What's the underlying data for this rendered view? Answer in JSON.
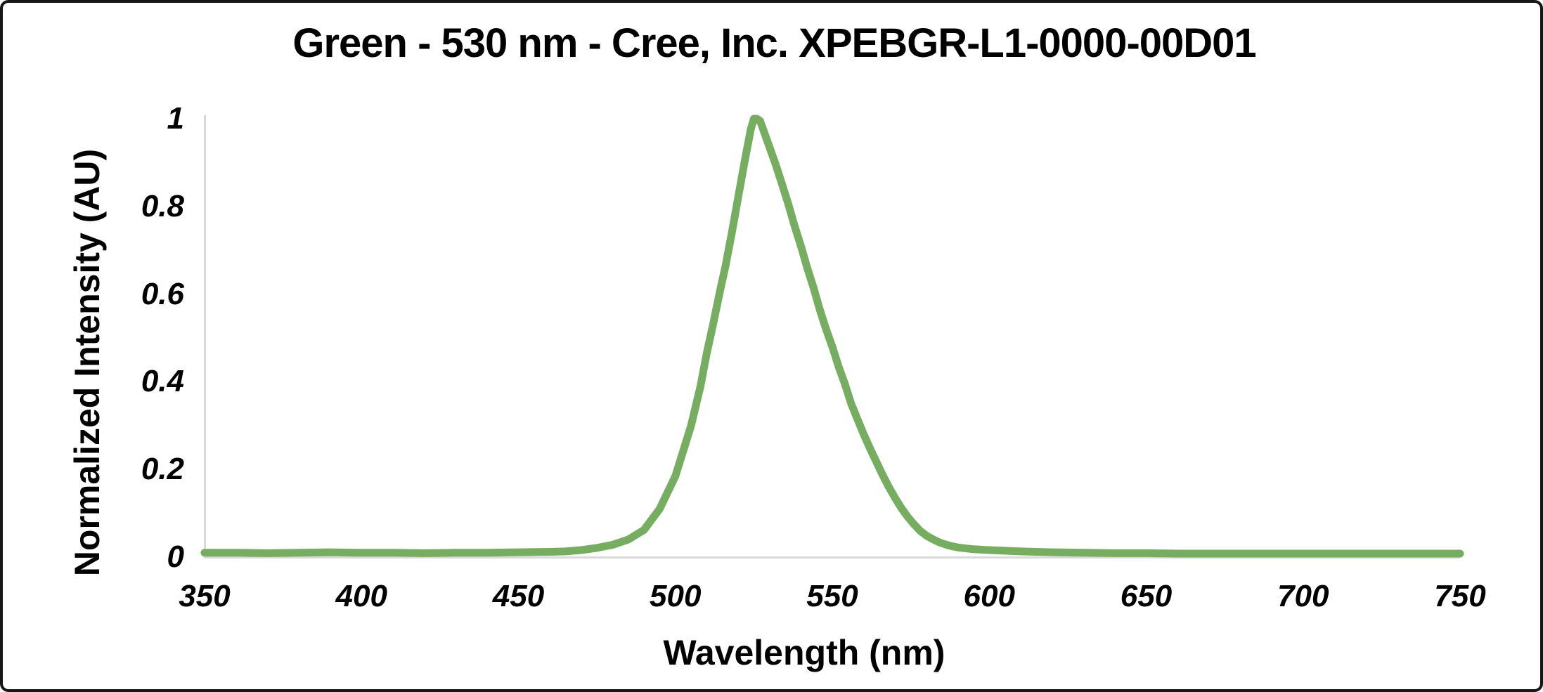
{
  "chart_data": {
    "type": "line",
    "title": "Green - 530 nm - Cree, Inc. XPEBGR-L1-0000-00D01",
    "xlabel": "Wavelength (nm)",
    "ylabel": "Normalized Intensity (AU)",
    "xlim": [
      350,
      750
    ],
    "ylim": [
      0,
      1
    ],
    "xticks": [
      350,
      400,
      450,
      500,
      550,
      600,
      650,
      700,
      750
    ],
    "yticks": [
      {
        "value": 0,
        "label": "0"
      },
      {
        "value": 0.2,
        "label": "0.2"
      },
      {
        "value": 0.4,
        "label": "0.4"
      },
      {
        "value": 0.6,
        "label": "0.6"
      },
      {
        "value": 0.8,
        "label": "0.8"
      },
      {
        "value": 1,
        "label": "1"
      }
    ],
    "grid": false,
    "legend": "none",
    "colors": {
      "line": "#76ad60",
      "axis_line": "#d9d9d9",
      "text": "#000000",
      "background": "#ffffff",
      "frame_border": "#161616"
    },
    "series": [
      {
        "name": "normalized-intensity-spectrum",
        "color": "#76ad60",
        "points": [
          [
            350,
            0.01
          ],
          [
            360,
            0.01
          ],
          [
            370,
            0.009
          ],
          [
            380,
            0.01
          ],
          [
            390,
            0.011
          ],
          [
            400,
            0.01
          ],
          [
            410,
            0.01
          ],
          [
            420,
            0.009
          ],
          [
            430,
            0.01
          ],
          [
            440,
            0.01
          ],
          [
            450,
            0.011
          ],
          [
            460,
            0.012
          ],
          [
            465,
            0.013
          ],
          [
            470,
            0.016
          ],
          [
            475,
            0.021
          ],
          [
            480,
            0.028
          ],
          [
            485,
            0.04
          ],
          [
            490,
            0.062
          ],
          [
            495,
            0.11
          ],
          [
            500,
            0.185
          ],
          [
            505,
            0.3
          ],
          [
            508,
            0.39
          ],
          [
            510,
            0.465
          ],
          [
            512,
            0.53
          ],
          [
            514,
            0.6
          ],
          [
            516,
            0.665
          ],
          [
            518,
            0.74
          ],
          [
            520,
            0.82
          ],
          [
            522,
            0.9
          ],
          [
            524,
            0.975
          ],
          [
            525,
            1.0
          ],
          [
            526,
            1.0
          ],
          [
            527,
            0.995
          ],
          [
            528,
            0.975
          ],
          [
            530,
            0.935
          ],
          [
            532,
            0.895
          ],
          [
            534,
            0.85
          ],
          [
            536,
            0.805
          ],
          [
            538,
            0.755
          ],
          [
            540,
            0.71
          ],
          [
            542,
            0.66
          ],
          [
            544,
            0.615
          ],
          [
            546,
            0.565
          ],
          [
            548,
            0.52
          ],
          [
            550,
            0.48
          ],
          [
            552,
            0.435
          ],
          [
            554,
            0.395
          ],
          [
            556,
            0.35
          ],
          [
            558,
            0.315
          ],
          [
            560,
            0.28
          ],
          [
            562,
            0.248
          ],
          [
            564,
            0.218
          ],
          [
            566,
            0.188
          ],
          [
            568,
            0.16
          ],
          [
            570,
            0.135
          ],
          [
            572,
            0.112
          ],
          [
            574,
            0.092
          ],
          [
            576,
            0.075
          ],
          [
            578,
            0.06
          ],
          [
            580,
            0.049
          ],
          [
            582,
            0.041
          ],
          [
            584,
            0.034
          ],
          [
            586,
            0.029
          ],
          [
            588,
            0.025
          ],
          [
            590,
            0.022
          ],
          [
            595,
            0.018
          ],
          [
            600,
            0.016
          ],
          [
            610,
            0.013
          ],
          [
            620,
            0.011
          ],
          [
            630,
            0.01
          ],
          [
            640,
            0.009
          ],
          [
            650,
            0.009
          ],
          [
            660,
            0.008
          ],
          [
            680,
            0.008
          ],
          [
            700,
            0.008
          ],
          [
            720,
            0.008
          ],
          [
            740,
            0.008
          ],
          [
            750,
            0.008
          ]
        ]
      }
    ]
  }
}
